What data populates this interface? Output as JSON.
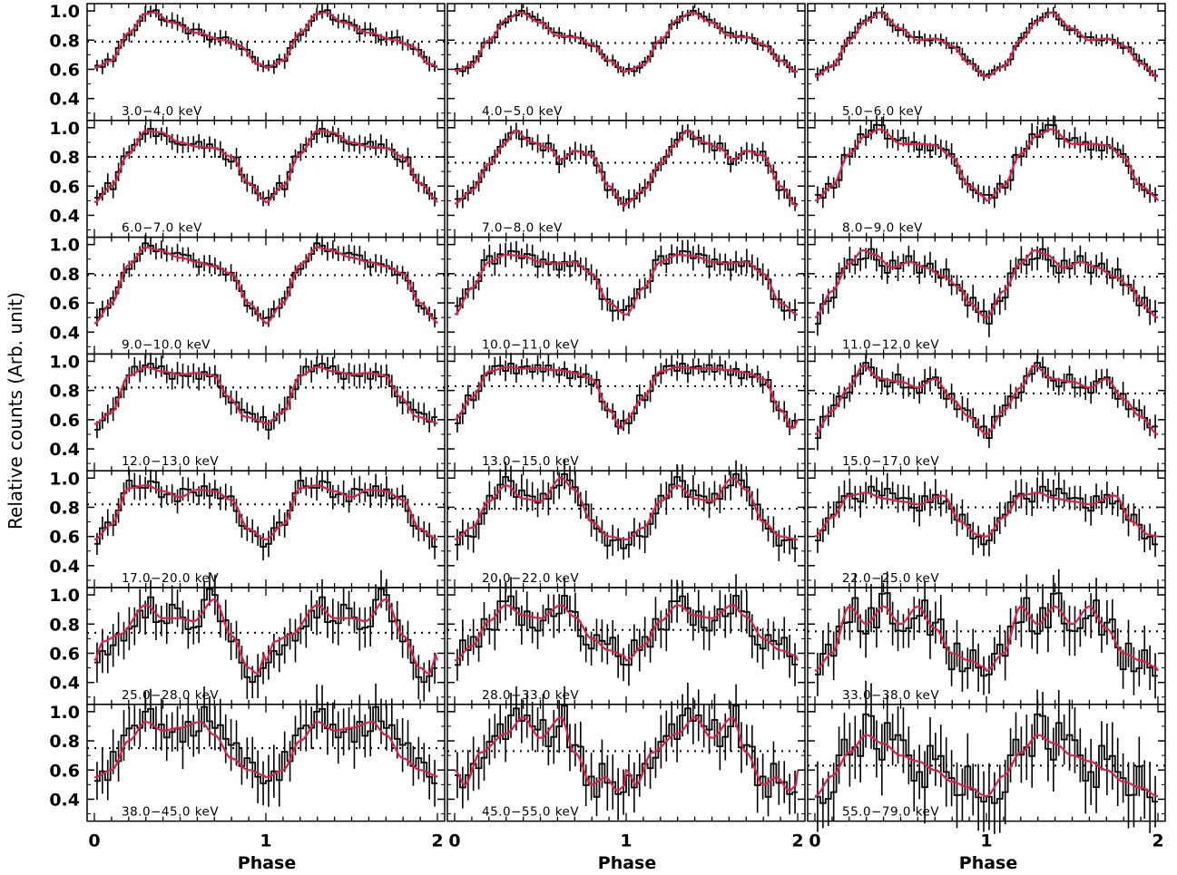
{
  "figure": {
    "ylabel": "Relative counts (Arb. unit)",
    "xlabel": "Phase"
  },
  "chart_data": {
    "type": "line",
    "description_grid": "7 rows x 3 columns of pulse profiles",
    "x_range": [
      0,
      2
    ],
    "x_ticks": [
      0,
      1,
      2
    ],
    "y_range": [
      0.25,
      1.05
    ],
    "y_ticks": [
      0.4,
      0.6,
      0.8,
      1.0
    ],
    "y_tick_labels": [
      "0.4",
      "0.6",
      "0.8",
      "1.0"
    ],
    "x_tick_labels": [
      "0",
      "1",
      "2"
    ],
    "series_colors": {
      "data": "#000000",
      "fit": "#e0204a",
      "mean": "#000000"
    },
    "panels": [
      {
        "label": "3.0−4.0  keV",
        "mean": 0.79,
        "noise": 0.02,
        "min": 0.62,
        "nodes": [
          [
            0,
            0.61
          ],
          [
            0.1,
            0.66
          ],
          [
            0.2,
            0.85
          ],
          [
            0.3,
            0.98
          ],
          [
            0.35,
            0.99
          ],
          [
            0.45,
            0.92
          ],
          [
            0.6,
            0.85
          ],
          [
            0.75,
            0.8
          ],
          [
            0.85,
            0.76
          ],
          [
            0.95,
            0.64
          ],
          [
            1.0,
            0.62
          ]
        ]
      },
      {
        "label": "4.0−5.0  keV",
        "mean": 0.78,
        "noise": 0.015,
        "min": 0.58,
        "nodes": [
          [
            0,
            0.59
          ],
          [
            0.1,
            0.63
          ],
          [
            0.2,
            0.8
          ],
          [
            0.3,
            0.94
          ],
          [
            0.38,
            0.99
          ],
          [
            0.5,
            0.92
          ],
          [
            0.6,
            0.83
          ],
          [
            0.7,
            0.82
          ],
          [
            0.8,
            0.77
          ],
          [
            0.9,
            0.66
          ],
          [
            1.0,
            0.58
          ]
        ]
      },
      {
        "label": "5.0−6.0  keV",
        "mean": 0.78,
        "noise": 0.015,
        "min": 0.55,
        "nodes": [
          [
            0,
            0.55
          ],
          [
            0.1,
            0.62
          ],
          [
            0.2,
            0.8
          ],
          [
            0.3,
            0.93
          ],
          [
            0.38,
            0.99
          ],
          [
            0.5,
            0.88
          ],
          [
            0.6,
            0.8
          ],
          [
            0.7,
            0.81
          ],
          [
            0.8,
            0.76
          ],
          [
            0.9,
            0.64
          ],
          [
            1.0,
            0.55
          ]
        ]
      },
      {
        "label": "6.0−7.0  keV",
        "mean": 0.8,
        "noise": 0.025,
        "min": 0.5,
        "nodes": [
          [
            0,
            0.49
          ],
          [
            0.1,
            0.6
          ],
          [
            0.2,
            0.82
          ],
          [
            0.3,
            0.98
          ],
          [
            0.38,
            0.97
          ],
          [
            0.5,
            0.9
          ],
          [
            0.6,
            0.87
          ],
          [
            0.7,
            0.86
          ],
          [
            0.8,
            0.8
          ],
          [
            0.9,
            0.62
          ],
          [
            1.0,
            0.5
          ]
        ]
      },
      {
        "label": "7.0−8.0  keV",
        "mean": 0.76,
        "noise": 0.025,
        "min": 0.45,
        "nodes": [
          [
            0,
            0.48
          ],
          [
            0.1,
            0.57
          ],
          [
            0.2,
            0.75
          ],
          [
            0.3,
            0.9
          ],
          [
            0.35,
            0.98
          ],
          [
            0.45,
            0.9
          ],
          [
            0.55,
            0.86
          ],
          [
            0.62,
            0.78
          ],
          [
            0.7,
            0.84
          ],
          [
            0.8,
            0.81
          ],
          [
            0.9,
            0.6
          ],
          [
            1.0,
            0.46
          ]
        ]
      },
      {
        "label": "8.0−9.0  keV",
        "mean": 0.8,
        "noise": 0.03,
        "min": 0.5,
        "nodes": [
          [
            0,
            0.5
          ],
          [
            0.1,
            0.6
          ],
          [
            0.2,
            0.82
          ],
          [
            0.3,
            0.95
          ],
          [
            0.38,
            0.99
          ],
          [
            0.5,
            0.89
          ],
          [
            0.6,
            0.89
          ],
          [
            0.7,
            0.88
          ],
          [
            0.8,
            0.8
          ],
          [
            0.9,
            0.6
          ],
          [
            1.0,
            0.52
          ]
        ]
      },
      {
        "label": "9.0−10.0  keV",
        "mean": 0.79,
        "noise": 0.025,
        "min": 0.48,
        "nodes": [
          [
            0,
            0.46
          ],
          [
            0.1,
            0.6
          ],
          [
            0.2,
            0.86
          ],
          [
            0.3,
            0.98
          ],
          [
            0.38,
            0.96
          ],
          [
            0.5,
            0.91
          ],
          [
            0.6,
            0.88
          ],
          [
            0.7,
            0.85
          ],
          [
            0.8,
            0.8
          ],
          [
            0.9,
            0.6
          ],
          [
            1.0,
            0.47
          ]
        ]
      },
      {
        "label": "10.0−11.0  keV",
        "mean": 0.79,
        "noise": 0.035,
        "min": 0.52,
        "nodes": [
          [
            0,
            0.52
          ],
          [
            0.1,
            0.7
          ],
          [
            0.2,
            0.88
          ],
          [
            0.3,
            0.93
          ],
          [
            0.4,
            0.92
          ],
          [
            0.5,
            0.88
          ],
          [
            0.6,
            0.87
          ],
          [
            0.7,
            0.88
          ],
          [
            0.8,
            0.8
          ],
          [
            0.9,
            0.6
          ],
          [
            1.0,
            0.52
          ]
        ]
      },
      {
        "label": "11.0−12.0  keV",
        "mean": 0.78,
        "noise": 0.04,
        "min": 0.5,
        "nodes": [
          [
            0,
            0.5
          ],
          [
            0.1,
            0.68
          ],
          [
            0.2,
            0.87
          ],
          [
            0.28,
            0.96
          ],
          [
            0.35,
            0.93
          ],
          [
            0.45,
            0.84
          ],
          [
            0.55,
            0.88
          ],
          [
            0.65,
            0.84
          ],
          [
            0.75,
            0.78
          ],
          [
            0.85,
            0.7
          ],
          [
            0.9,
            0.6
          ],
          [
            1.0,
            0.5
          ]
        ]
      },
      {
        "label": "12.0−13.0  keV",
        "mean": 0.82,
        "noise": 0.035,
        "min": 0.57,
        "nodes": [
          [
            0,
            0.57
          ],
          [
            0.1,
            0.65
          ],
          [
            0.2,
            0.9
          ],
          [
            0.3,
            0.96
          ],
          [
            0.4,
            0.93
          ],
          [
            0.5,
            0.91
          ],
          [
            0.6,
            0.92
          ],
          [
            0.7,
            0.9
          ],
          [
            0.78,
            0.76
          ],
          [
            0.88,
            0.62
          ],
          [
            1.0,
            0.58
          ]
        ]
      },
      {
        "label": "13.0−15.0  keV",
        "mean": 0.83,
        "noise": 0.03,
        "min": 0.54,
        "nodes": [
          [
            0,
            0.6
          ],
          [
            0.1,
            0.75
          ],
          [
            0.2,
            0.93
          ],
          [
            0.3,
            0.96
          ],
          [
            0.4,
            0.95
          ],
          [
            0.5,
            0.95
          ],
          [
            0.6,
            0.94
          ],
          [
            0.7,
            0.92
          ],
          [
            0.8,
            0.88
          ],
          [
            0.9,
            0.67
          ],
          [
            0.97,
            0.54
          ],
          [
            1.0,
            0.58
          ]
        ]
      },
      {
        "label": "15.0−17.0  keV",
        "mean": 0.78,
        "noise": 0.035,
        "min": 0.5,
        "nodes": [
          [
            0,
            0.5
          ],
          [
            0.1,
            0.66
          ],
          [
            0.2,
            0.82
          ],
          [
            0.28,
            0.97
          ],
          [
            0.38,
            0.88
          ],
          [
            0.5,
            0.86
          ],
          [
            0.6,
            0.82
          ],
          [
            0.7,
            0.88
          ],
          [
            0.8,
            0.74
          ],
          [
            0.9,
            0.62
          ],
          [
            1.0,
            0.5
          ]
        ]
      },
      {
        "label": "17.0−20.0  keV",
        "mean": 0.82,
        "noise": 0.04,
        "min": 0.58,
        "nodes": [
          [
            0,
            0.58
          ],
          [
            0.1,
            0.68
          ],
          [
            0.2,
            0.93
          ],
          [
            0.3,
            0.95
          ],
          [
            0.4,
            0.91
          ],
          [
            0.5,
            0.87
          ],
          [
            0.6,
            0.92
          ],
          [
            0.7,
            0.91
          ],
          [
            0.8,
            0.85
          ],
          [
            0.9,
            0.65
          ],
          [
            1.0,
            0.58
          ]
        ]
      },
      {
        "label": "20.0−22.0  keV",
        "mean": 0.79,
        "noise": 0.05,
        "min": 0.58,
        "nodes": [
          [
            0,
            0.58
          ],
          [
            0.1,
            0.66
          ],
          [
            0.2,
            0.84
          ],
          [
            0.3,
            0.95
          ],
          [
            0.4,
            0.86
          ],
          [
            0.5,
            0.84
          ],
          [
            0.62,
            1.0
          ],
          [
            0.7,
            0.92
          ],
          [
            0.8,
            0.7
          ],
          [
            0.9,
            0.6
          ],
          [
            1.0,
            0.58
          ]
        ]
      },
      {
        "label": "22.0−25.0  keV",
        "mean": 0.8,
        "noise": 0.05,
        "min": 0.6,
        "nodes": [
          [
            0,
            0.6
          ],
          [
            0.1,
            0.73
          ],
          [
            0.2,
            0.88
          ],
          [
            0.3,
            0.9
          ],
          [
            0.4,
            0.86
          ],
          [
            0.5,
            0.84
          ],
          [
            0.6,
            0.82
          ],
          [
            0.75,
            0.88
          ],
          [
            0.85,
            0.7
          ],
          [
            0.95,
            0.61
          ],
          [
            1.0,
            0.6
          ]
        ]
      },
      {
        "label": "25.0−28.0  keV",
        "mean": 0.74,
        "noise": 0.07,
        "min": 0.45,
        "nodes": [
          [
            0,
            0.55
          ],
          [
            0.05,
            0.68
          ],
          [
            0.15,
            0.73
          ],
          [
            0.3,
            0.93
          ],
          [
            0.4,
            0.84
          ],
          [
            0.5,
            0.84
          ],
          [
            0.58,
            0.82
          ],
          [
            0.7,
            0.97
          ],
          [
            0.8,
            0.72
          ],
          [
            0.9,
            0.5
          ],
          [
            0.95,
            0.46
          ],
          [
            1.0,
            0.6
          ]
        ]
      },
      {
        "label": "28.0−33.0  keV",
        "mean": 0.76,
        "noise": 0.07,
        "min": 0.55,
        "nodes": [
          [
            0,
            0.55
          ],
          [
            0.1,
            0.65
          ],
          [
            0.2,
            0.82
          ],
          [
            0.3,
            0.93
          ],
          [
            0.4,
            0.86
          ],
          [
            0.5,
            0.84
          ],
          [
            0.62,
            0.93
          ],
          [
            0.7,
            0.85
          ],
          [
            0.8,
            0.7
          ],
          [
            0.9,
            0.62
          ],
          [
            1.0,
            0.58
          ]
        ]
      },
      {
        "label": "33.0−38.0  keV",
        "mean": 0.75,
        "noise": 0.08,
        "min": 0.48,
        "nodes": [
          [
            0,
            0.48
          ],
          [
            0.1,
            0.6
          ],
          [
            0.2,
            0.92
          ],
          [
            0.3,
            0.8
          ],
          [
            0.4,
            0.92
          ],
          [
            0.5,
            0.8
          ],
          [
            0.6,
            0.92
          ],
          [
            0.7,
            0.77
          ],
          [
            0.8,
            0.6
          ],
          [
            0.9,
            0.55
          ],
          [
            1.0,
            0.5
          ]
        ]
      },
      {
        "label": "38.0−45.0  keV",
        "mean": 0.75,
        "noise": 0.09,
        "min": 0.55,
        "nodes": [
          [
            0,
            0.55
          ],
          [
            0.1,
            0.6
          ],
          [
            0.2,
            0.8
          ],
          [
            0.3,
            0.93
          ],
          [
            0.4,
            0.87
          ],
          [
            0.5,
            0.89
          ],
          [
            0.62,
            0.93
          ],
          [
            0.7,
            0.84
          ],
          [
            0.8,
            0.68
          ],
          [
            0.9,
            0.6
          ],
          [
            1.0,
            0.56
          ]
        ]
      },
      {
        "label": "45.0−55.0  keV",
        "mean": 0.73,
        "noise": 0.09,
        "min": 0.45,
        "nodes": [
          [
            0,
            0.6
          ],
          [
            0.06,
            0.5
          ],
          [
            0.15,
            0.72
          ],
          [
            0.3,
            0.85
          ],
          [
            0.4,
            0.96
          ],
          [
            0.5,
            0.82
          ],
          [
            0.62,
            0.96
          ],
          [
            0.7,
            0.72
          ],
          [
            0.8,
            0.5
          ],
          [
            0.88,
            0.55
          ],
          [
            0.95,
            0.46
          ],
          [
            1.0,
            0.5
          ]
        ]
      },
      {
        "label": "55.0−79.0  keV",
        "mean": 0.63,
        "noise": 0.12,
        "min": 0.38,
        "nodes": [
          [
            0,
            0.42
          ],
          [
            0.1,
            0.56
          ],
          [
            0.2,
            0.72
          ],
          [
            0.3,
            0.84
          ],
          [
            0.4,
            0.78
          ],
          [
            0.5,
            0.7
          ],
          [
            0.6,
            0.66
          ],
          [
            0.7,
            0.6
          ],
          [
            0.8,
            0.52
          ],
          [
            0.9,
            0.48
          ],
          [
            1.0,
            0.42
          ]
        ]
      }
    ]
  }
}
